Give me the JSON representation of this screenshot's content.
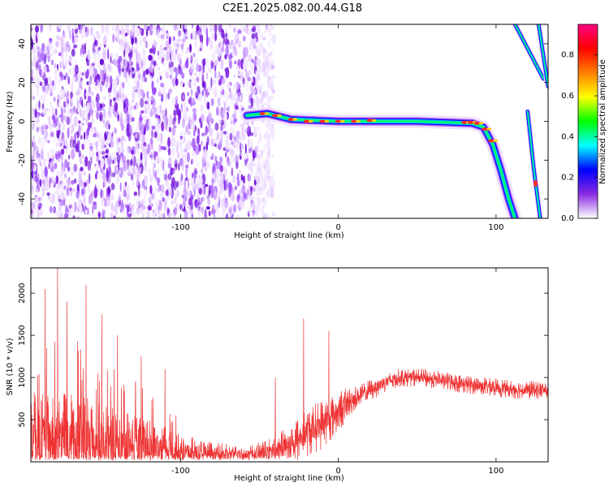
{
  "title": "C2E1.2025.082.00.44.G18",
  "chart_data": [
    {
      "type": "heatmap",
      "xlabel": "Height of straight line (km)",
      "ylabel": "Frequency (Hz)",
      "xlim": [
        -195,
        133
      ],
      "ylim": [
        -50,
        50
      ],
      "xticks": [
        -100,
        0,
        100
      ],
      "xtick_labels": [
        "-100",
        "0",
        "100"
      ],
      "yticks": [
        -40,
        -20,
        0,
        20,
        40
      ],
      "ytick_labels": [
        "-40",
        "-20",
        "0",
        "20",
        "40"
      ],
      "colorbar": {
        "label": "Normalized spectral amplitude",
        "range": [
          0,
          0.95
        ],
        "ticks": [
          0,
          0.2,
          0.4,
          0.6,
          0.8
        ],
        "tick_labels": [
          "0.0",
          "0.2",
          "0.4",
          "0.6",
          "0.8"
        ],
        "colormap": [
          "#ffffff",
          "#8a2be2",
          "#0000ff",
          "#00ffff",
          "#00ff00",
          "#ffff00",
          "#ff8000",
          "#ff0000",
          "#ff0080"
        ]
      },
      "features": {
        "noise_region_x": [
          -195,
          -52
        ],
        "main_track": [
          {
            "x": -58,
            "f": 3
          },
          {
            "x": -45,
            "f": 4
          },
          {
            "x": -30,
            "f": 1
          },
          {
            "x": 0,
            "f": 0
          },
          {
            "x": 50,
            "f": 0
          },
          {
            "x": 85,
            "f": -1
          },
          {
            "x": 92,
            "f": -3
          },
          {
            "x": 98,
            "f": -12
          },
          {
            "x": 103,
            "f": -25
          },
          {
            "x": 108,
            "f": -40
          },
          {
            "x": 112,
            "f": -50
          }
        ],
        "upper_track_left": [
          {
            "x": 112,
            "f": 50
          },
          {
            "x": 130,
            "f": 22
          }
        ],
        "upper_track_right": [
          {
            "x": 127,
            "f": 50
          },
          {
            "x": 133,
            "f": 18
          }
        ],
        "steep_track": [
          {
            "x": 120,
            "f": 5
          },
          {
            "x": 124,
            "f": -25
          },
          {
            "x": 128,
            "f": -50
          }
        ]
      }
    },
    {
      "type": "line",
      "xlabel": "Height of straight line (km)",
      "ylabel": "SNR (10 * v/v)",
      "xlim": [
        -195,
        133
      ],
      "ylim": [
        0,
        2300
      ],
      "xticks": [
        -100,
        0,
        100
      ],
      "xtick_labels": [
        "-100",
        "0",
        "100"
      ],
      "yticks": [
        500,
        1000,
        1500,
        2000
      ],
      "ytick_labels": [
        "500",
        "1000",
        "1500",
        "2000"
      ],
      "color": "#ee3333",
      "envelope": {
        "x": [
          -195,
          -180,
          -160,
          -140,
          -120,
          -100,
          -80,
          -60,
          -45,
          -30,
          -20,
          -10,
          0,
          10,
          20,
          30,
          40,
          50,
          60,
          70,
          80,
          90,
          100,
          110,
          120,
          133
        ],
        "baseline": [
          250,
          240,
          220,
          180,
          140,
          110,
          90,
          80,
          110,
          200,
          350,
          450,
          600,
          750,
          850,
          950,
          1000,
          1000,
          980,
          950,
          920,
          900,
          880,
          860,
          850,
          850
        ],
        "spread": [
          600,
          600,
          550,
          450,
          350,
          220,
          150,
          100,
          150,
          250,
          300,
          300,
          250,
          150,
          130,
          120,
          110,
          110,
          110,
          110,
          110,
          110,
          110,
          110,
          110,
          110
        ]
      },
      "spikes": [
        {
          "x": -178,
          "y": 2300
        },
        {
          "x": -186,
          "y": 2050
        },
        {
          "x": -172,
          "y": 1900
        },
        {
          "x": -160,
          "y": 2100
        },
        {
          "x": -150,
          "y": 1750
        },
        {
          "x": -140,
          "y": 1500
        },
        {
          "x": -125,
          "y": 1250
        },
        {
          "x": -110,
          "y": 1100
        },
        {
          "x": -22,
          "y": 1700
        },
        {
          "x": -6,
          "y": 1550
        },
        {
          "x": -40,
          "y": 1000
        }
      ]
    }
  ]
}
